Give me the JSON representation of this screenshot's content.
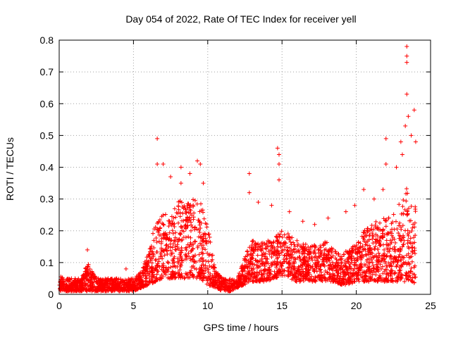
{
  "chart_data": {
    "type": "scatter",
    "title": "Day 054 of 2022, Rate Of TEC Index for receiver yell",
    "xlabel": "GPS time / hours",
    "ylabel": "ROTI / TECUs",
    "xlim": [
      0,
      25
    ],
    "ylim": [
      0,
      0.8
    ],
    "xticks": [
      0,
      5,
      10,
      15,
      20,
      25
    ],
    "yticks": [
      0,
      0.1,
      0.2,
      0.3,
      0.4,
      0.5,
      0.6,
      0.7,
      0.8
    ],
    "grid": true,
    "marker": "+",
    "color": "#ff0000",
    "series": [
      {
        "name": "ROTI",
        "envelope": {
          "hours": [
            0,
            0.5,
            1,
            1.5,
            1.9,
            2.5,
            3,
            3.5,
            4,
            4.5,
            5,
            5.5,
            6,
            6.5,
            7,
            7.5,
            8,
            8.5,
            9,
            9.5,
            10,
            10.5,
            11,
            11.5,
            12,
            12.5,
            13,
            13.5,
            14,
            14.5,
            15,
            15.5,
            16,
            16.5,
            17,
            17.5,
            18,
            18.5,
            19,
            19.5,
            20,
            20.5,
            21,
            21.5,
            22,
            22.5,
            23,
            23.5,
            24
          ],
          "typical_max": [
            0.06,
            0.05,
            0.05,
            0.05,
            0.1,
            0.05,
            0.05,
            0.05,
            0.05,
            0.05,
            0.05,
            0.07,
            0.13,
            0.23,
            0.25,
            0.26,
            0.3,
            0.28,
            0.3,
            0.29,
            0.22,
            0.08,
            0.05,
            0.05,
            0.05,
            0.12,
            0.17,
            0.16,
            0.17,
            0.18,
            0.2,
            0.19,
            0.17,
            0.16,
            0.16,
            0.15,
            0.17,
            0.14,
            0.13,
            0.14,
            0.16,
            0.2,
            0.22,
            0.24,
            0.24,
            0.25,
            0.3,
            0.35,
            0.28
          ],
          "floor": [
            0.01,
            0.01,
            0.01,
            0.01,
            0.01,
            0.01,
            0.01,
            0.01,
            0.01,
            0.01,
            0.01,
            0.02,
            0.03,
            0.04,
            0.05,
            0.05,
            0.05,
            0.05,
            0.05,
            0.05,
            0.03,
            0.02,
            0.01,
            0.01,
            0.02,
            0.03,
            0.04,
            0.04,
            0.04,
            0.05,
            0.06,
            0.05,
            0.04,
            0.04,
            0.04,
            0.04,
            0.04,
            0.04,
            0.03,
            0.03,
            0.04,
            0.04,
            0.04,
            0.04,
            0.04,
            0.04,
            0.04,
            0.04,
            0.03
          ]
        },
        "peaks": [
          [
            1.9,
            0.14
          ],
          [
            4.5,
            0.08
          ],
          [
            6.6,
            0.49
          ],
          [
            6.6,
            0.41
          ],
          [
            7.0,
            0.41
          ],
          [
            7.5,
            0.37
          ],
          [
            8.2,
            0.4
          ],
          [
            8.2,
            0.35
          ],
          [
            8.8,
            0.38
          ],
          [
            9.3,
            0.42
          ],
          [
            9.5,
            0.41
          ],
          [
            9.7,
            0.35
          ],
          [
            12.8,
            0.38
          ],
          [
            12.8,
            0.32
          ],
          [
            13.4,
            0.29
          ],
          [
            14.3,
            0.28
          ],
          [
            14.7,
            0.46
          ],
          [
            14.8,
            0.44
          ],
          [
            14.8,
            0.41
          ],
          [
            14.8,
            0.36
          ],
          [
            15.5,
            0.26
          ],
          [
            16.4,
            0.23
          ],
          [
            17.2,
            0.22
          ],
          [
            18.1,
            0.24
          ],
          [
            19.3,
            0.26
          ],
          [
            19.9,
            0.28
          ],
          [
            20.5,
            0.33
          ],
          [
            21.2,
            0.3
          ],
          [
            21.8,
            0.33
          ],
          [
            22.0,
            0.49
          ],
          [
            22.0,
            0.41
          ],
          [
            22.7,
            0.4
          ],
          [
            23.0,
            0.48
          ],
          [
            23.1,
            0.44
          ],
          [
            23.3,
            0.53
          ],
          [
            23.4,
            0.78
          ],
          [
            23.4,
            0.75
          ],
          [
            23.4,
            0.73
          ],
          [
            23.4,
            0.63
          ],
          [
            23.5,
            0.56
          ],
          [
            23.7,
            0.5
          ],
          [
            23.9,
            0.58
          ],
          [
            24.0,
            0.48
          ]
        ]
      }
    ]
  }
}
